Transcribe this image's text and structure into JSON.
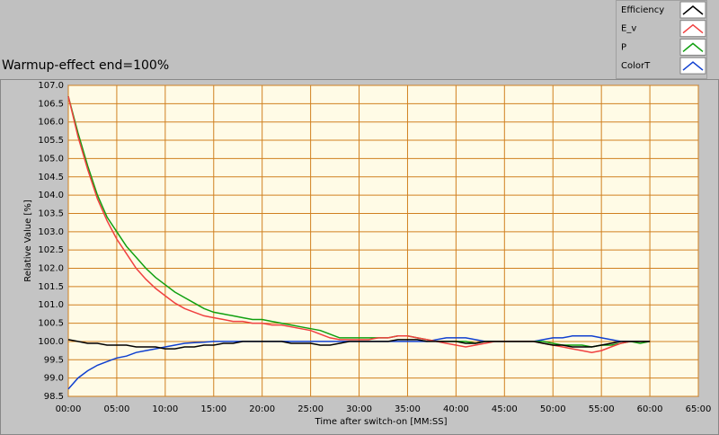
{
  "chart_data": {
    "type": "line",
    "title": "Warmup-effect end=100%",
    "x_label": "Time after switch-on [MM:SS]",
    "y_label": "Relative Value [%]",
    "x": [
      0,
      1,
      2,
      3,
      4,
      5,
      6,
      7,
      8,
      9,
      10,
      11,
      12,
      13,
      14,
      15,
      16,
      17,
      18,
      19,
      20,
      21,
      22,
      23,
      24,
      25,
      26,
      27,
      28,
      29,
      30,
      31,
      32,
      33,
      34,
      35,
      36,
      37,
      38,
      39,
      40,
      41,
      42,
      43,
      44,
      45,
      46,
      47,
      48,
      49,
      50,
      51,
      52,
      53,
      54,
      55,
      56,
      57,
      58,
      59,
      60
    ],
    "series": [
      {
        "name": "Efficiency",
        "color": "#000000",
        "values": [
          100.05,
          100.0,
          99.95,
          99.95,
          99.9,
          99.9,
          99.9,
          99.85,
          99.85,
          99.85,
          99.8,
          99.8,
          99.85,
          99.85,
          99.9,
          99.9,
          99.95,
          99.95,
          100.0,
          100.0,
          100.0,
          100.0,
          100.0,
          99.95,
          99.95,
          99.95,
          99.9,
          99.9,
          99.95,
          100.0,
          100.0,
          100.0,
          100.0,
          100.0,
          100.05,
          100.05,
          100.05,
          100.0,
          100.0,
          100.0,
          100.0,
          99.95,
          99.95,
          100.0,
          100.0,
          100.0,
          100.0,
          100.0,
          100.0,
          99.95,
          99.9,
          99.9,
          99.85,
          99.85,
          99.85,
          99.9,
          99.95,
          100.0,
          100.0,
          100.0,
          100.0
        ]
      },
      {
        "name": "E_v",
        "color": "#f04040",
        "values": [
          106.7,
          105.6,
          104.7,
          103.9,
          103.3,
          102.8,
          102.4,
          102.0,
          101.7,
          101.45,
          101.25,
          101.05,
          100.9,
          100.8,
          100.7,
          100.65,
          100.6,
          100.55,
          100.55,
          100.5,
          100.5,
          100.45,
          100.45,
          100.4,
          100.35,
          100.3,
          100.2,
          100.1,
          100.05,
          100.05,
          100.05,
          100.05,
          100.1,
          100.1,
          100.15,
          100.15,
          100.1,
          100.05,
          100.0,
          99.95,
          99.9,
          99.85,
          99.9,
          99.95,
          100.0,
          100.0,
          100.0,
          100.0,
          100.0,
          99.95,
          99.9,
          99.85,
          99.8,
          99.75,
          99.7,
          99.75,
          99.85,
          99.95,
          100.0,
          100.0,
          100.0
        ]
      },
      {
        "name": "P",
        "color": "#10a010",
        "values": [
          106.7,
          105.7,
          104.8,
          104.0,
          103.4,
          103.0,
          102.6,
          102.3,
          102.0,
          101.75,
          101.55,
          101.35,
          101.2,
          101.05,
          100.9,
          100.8,
          100.75,
          100.7,
          100.65,
          100.6,
          100.6,
          100.55,
          100.5,
          100.45,
          100.4,
          100.35,
          100.3,
          100.2,
          100.1,
          100.1,
          100.1,
          100.1,
          100.1,
          100.1,
          100.15,
          100.15,
          100.1,
          100.05,
          100.0,
          100.0,
          100.0,
          100.0,
          99.95,
          100.0,
          100.0,
          100.0,
          100.0,
          100.0,
          100.0,
          100.0,
          99.95,
          99.9,
          99.9,
          99.9,
          99.85,
          99.9,
          99.9,
          99.95,
          100.0,
          99.95,
          100.0
        ]
      },
      {
        "name": "ColorT",
        "color": "#1040d0",
        "values": [
          98.7,
          99.0,
          99.2,
          99.35,
          99.45,
          99.55,
          99.6,
          99.7,
          99.75,
          99.8,
          99.85,
          99.9,
          99.95,
          99.97,
          99.98,
          100.0,
          100.0,
          100.0,
          100.0,
          100.0,
          100.0,
          100.0,
          100.0,
          100.0,
          100.0,
          100.0,
          100.0,
          100.0,
          100.0,
          100.0,
          100.0,
          100.0,
          100.0,
          100.0,
          100.0,
          100.0,
          100.0,
          100.0,
          100.05,
          100.1,
          100.1,
          100.1,
          100.05,
          100.0,
          100.0,
          100.0,
          100.0,
          100.0,
          100.0,
          100.05,
          100.1,
          100.1,
          100.15,
          100.15,
          100.15,
          100.1,
          100.05,
          100.0,
          100.0,
          100.0,
          100.0
        ]
      }
    ],
    "xlim": [
      0,
      65
    ],
    "xticks": [
      {
        "value": 0,
        "label": "00:00"
      },
      {
        "value": 5,
        "label": "05:00"
      },
      {
        "value": 10,
        "label": "10:00"
      },
      {
        "value": 15,
        "label": "15:00"
      },
      {
        "value": 20,
        "label": "20:00"
      },
      {
        "value": 25,
        "label": "25:00"
      },
      {
        "value": 30,
        "label": "30:00"
      },
      {
        "value": 35,
        "label": "35:00"
      },
      {
        "value": 40,
        "label": "40:00"
      },
      {
        "value": 45,
        "label": "45:00"
      },
      {
        "value": 50,
        "label": "50:00"
      },
      {
        "value": 55,
        "label": "55:00"
      },
      {
        "value": 60,
        "label": "60:00"
      },
      {
        "value": 65,
        "label": "65:00"
      }
    ],
    "ylim": [
      98.5,
      107.0
    ],
    "yticks": [
      98.5,
      99.5,
      {
        "value": 100,
        "label": "100.0"
      },
      100.5,
      {
        "value": 101,
        "label": "101.0"
      },
      101.5,
      {
        "value": 102,
        "label": "102.0"
      },
      102.5,
      {
        "value": 103,
        "label": "103.0"
      },
      103.5,
      {
        "value": 104,
        "label": "104.0"
      },
      104.5,
      {
        "value": 105,
        "label": "105.0"
      },
      105.5,
      {
        "value": 106,
        "label": "106.0"
      },
      106.5,
      {
        "value": 107,
        "label": "107.0"
      },
      {
        "value": 99,
        "label": "99.0"
      }
    ],
    "grid": true,
    "grid_color": "#d08020",
    "legend": "top-right"
  }
}
